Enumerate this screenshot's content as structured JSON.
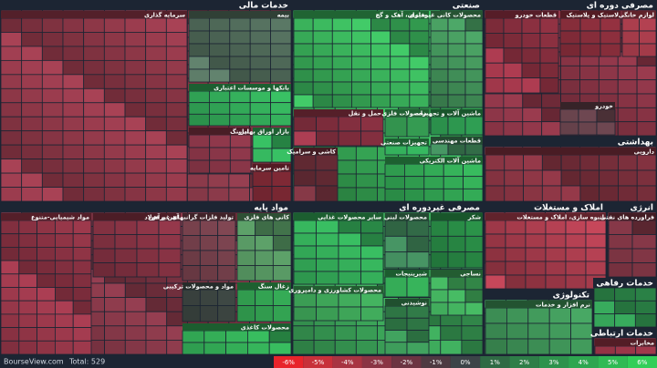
{
  "sectors": [
    {
      "title": "خدمات مالی",
      "color": "#7c3442",
      "subsectors": [
        {
          "title": "سرمایه گذاری",
          "color": "#8a3646"
        },
        {
          "title": "بیمه",
          "color": "#506b5a"
        },
        {
          "title": "بانکها و موسسات اعتباری",
          "color": "#2f9e52"
        },
        {
          "title": "لیزینگ",
          "color": "#7a3040"
        },
        {
          "title": "بازار اوراق بهادار",
          "color": "#2e9e52"
        },
        {
          "title": "تامین سرمایه",
          "color": "#8a2d3a"
        }
      ]
    },
    {
      "title": "صنعتی",
      "color": "#34a051",
      "subsectors": [
        {
          "title": "سیمان، آهک و گچ",
          "color": "#36a655"
        },
        {
          "title": "محصولات کانی غیرفلزی",
          "color": "#3f8a55"
        },
        {
          "title": "حمل و نقل",
          "color": "#8e3344"
        },
        {
          "title": "محصولات فلزی",
          "color": "#37a055"
        },
        {
          "title": "ماشین آلات و تجهیزات",
          "color": "#2a8d4a"
        },
        {
          "title": "تجهیزات صنعتی",
          "color": "#2e9e52"
        },
        {
          "title": "قطعات مهندسی",
          "color": "#3a7c52"
        },
        {
          "title": "کاشی و سرامیک",
          "color": "#6e2f3a"
        },
        {
          "title": "ماشین آلات الکتریکی",
          "color": "#30a050"
        }
      ]
    },
    {
      "title": "مصرفی دوره ای",
      "color": "#7e3040",
      "subsectors": [
        {
          "title": "قطعات خودرو",
          "color": "#8f3142"
        },
        {
          "title": "لاستیک و پلاستیک",
          "color": "#8a2e3c"
        },
        {
          "title": "لوازم خانگی",
          "color": "#a03a48"
        },
        {
          "title": "خودرو",
          "color": "#5a3a42"
        }
      ]
    },
    {
      "title": "بهداشتی",
      "color": "#6f3240",
      "subsectors": [
        {
          "title": "دارویی",
          "color": "#7a2f3c"
        }
      ]
    },
    {
      "title": "مواد پایه",
      "color": "#7a3342",
      "subsectors": [
        {
          "title": "مواد شیمیایی-متنوع",
          "color": "#8c3344"
        },
        {
          "title": "آهن و فولاد",
          "color": "#7f3040"
        },
        {
          "title": "تولید فلزات گرانبهای غیرآهن",
          "color": "#6a3a44"
        },
        {
          "title": "کانی های فلزی",
          "color": "#4c8456"
        },
        {
          "title": "مواد و محصولات ترکیبی",
          "color": "#404a46"
        },
        {
          "title": "زغال سنگ",
          "color": "#32a050"
        },
        {
          "title": "محصولات کاغذی",
          "color": "#2e9b4e"
        }
      ]
    },
    {
      "title": "مصرفی غیردوره ای",
      "color": "#35924f",
      "subsectors": [
        {
          "title": "سایر محصولات غذایی",
          "color": "#2f9c50"
        },
        {
          "title": "محصولات لبنی",
          "color": "#3a7a52"
        },
        {
          "title": "شکر",
          "color": "#2a9048"
        },
        {
          "title": "محصولات کشاورزی و دامپروری",
          "color": "#3a9a52"
        },
        {
          "title": "شیرینیجات",
          "color": "#2f9a4e"
        },
        {
          "title": "نساجی",
          "color": "#3a9a52"
        },
        {
          "title": "نوشیدنی",
          "color": "#35864e"
        }
      ]
    },
    {
      "title": "املاک و مستغلات",
      "color": "#a23a4a",
      "subsectors": [
        {
          "title": "انبوه سازی، املاک و مستغلات",
          "color": "#a23a4a"
        }
      ]
    },
    {
      "title": "انرژی",
      "color": "#6e2e3b",
      "subsectors": [
        {
          "title": "فراورده های نفتی",
          "color": "#6e2e3b"
        }
      ]
    },
    {
      "title": "تکنولوژی",
      "color": "#3b8a52",
      "subsectors": [
        {
          "title": "نرم افزار و خدمات",
          "color": "#3b8a52"
        }
      ]
    },
    {
      "title": "خدمات رفاهی",
      "color": "#2e8c4c",
      "subsectors": []
    },
    {
      "title": "خدمات ارتباطی",
      "color": "#8a3040",
      "subsectors": [
        {
          "title": "مخابرات",
          "color": "#8a3040"
        }
      ]
    }
  ],
  "footer": {
    "site": "BourseView.com",
    "total": "Total: 529"
  },
  "legend": [
    {
      "label": "-6%",
      "color": "#e8242b"
    },
    {
      "label": "-5%",
      "color": "#c8303a"
    },
    {
      "label": "-4%",
      "color": "#a83442"
    },
    {
      "label": "-3%",
      "color": "#8a3444"
    },
    {
      "label": "-2%",
      "color": "#6c3442"
    },
    {
      "label": "-1%",
      "color": "#4e3a42"
    },
    {
      "label": "0%",
      "color": "#3c4448"
    },
    {
      "label": "1%",
      "color": "#2f6a44"
    },
    {
      "label": "2%",
      "color": "#2e7e48"
    },
    {
      "label": "3%",
      "color": "#2e924c"
    },
    {
      "label": "4%",
      "color": "#2ea650"
    },
    {
      "label": "5%",
      "color": "#30ba54"
    },
    {
      "label": "6%",
      "color": "#32ce58"
    }
  ]
}
